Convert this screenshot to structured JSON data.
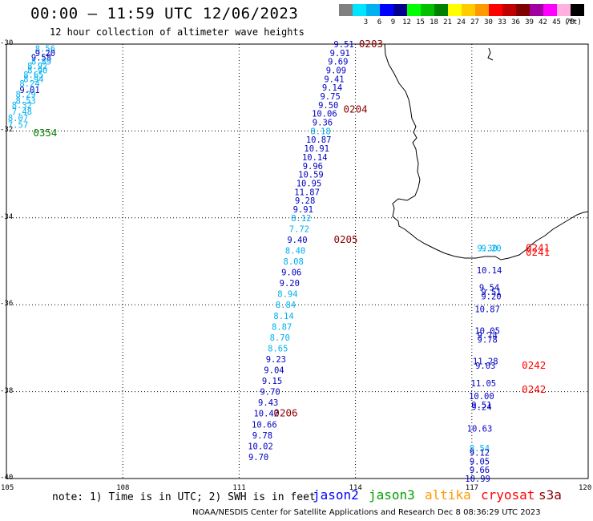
{
  "title": "00:00 – 11:59 UTC 12/06/2023",
  "subtitle": "12 hour collection of altimeter wave heights",
  "legend": {
    "unit": "(ft)",
    "bins": [
      {
        "color": "#808080",
        "label": ""
      },
      {
        "color": "#00e5ff",
        "label": "3"
      },
      {
        "color": "#00b0f0",
        "label": "6"
      },
      {
        "color": "#0000ff",
        "label": "9"
      },
      {
        "color": "#000090",
        "label": "12"
      },
      {
        "color": "#00ff00",
        "label": "15"
      },
      {
        "color": "#00c000",
        "label": "18"
      },
      {
        "color": "#008000",
        "label": "21"
      },
      {
        "color": "#ffff00",
        "label": "24"
      },
      {
        "color": "#ffcc00",
        "label": "27"
      },
      {
        "color": "#ff9900",
        "label": "30"
      },
      {
        "color": "#ff0000",
        "label": "33"
      },
      {
        "color": "#c00000",
        "label": "36"
      },
      {
        "color": "#800000",
        "label": "39"
      },
      {
        "color": "#a000a0",
        "label": "42"
      },
      {
        "color": "#ff00ff",
        "label": "45"
      },
      {
        "color": "#ffb0e0",
        "label": "70"
      },
      {
        "color": "#000000",
        "label": ""
      }
    ]
  },
  "axes": {
    "lon_labels": [
      "105",
      "108",
      "111",
      "114",
      "117",
      "120"
    ],
    "lat_labels": [
      "-30",
      "-32",
      "-34",
      "-36",
      "-38",
      "-40"
    ]
  },
  "tracks": [
    {
      "name": "track-west",
      "color": "#00b0f0",
      "points": [
        {
          "lon": 106.0,
          "lat": -30.1,
          "v": "8.56",
          "c": "#00b0f0"
        },
        {
          "lon": 106.0,
          "lat": -30.2,
          "v": "9.20",
          "c": "#0000c0"
        },
        {
          "lon": 105.9,
          "lat": -30.3,
          "v": "9.58",
          "c": "#0000c0"
        },
        {
          "lon": 105.9,
          "lat": -30.4,
          "v": "8.89",
          "c": "#00b0f0"
        },
        {
          "lon": 105.8,
          "lat": -30.5,
          "v": "8.92",
          "c": "#00b0f0"
        },
        {
          "lon": 105.8,
          "lat": -30.6,
          "v": "8.90",
          "c": "#00b0f0"
        },
        {
          "lon": 105.7,
          "lat": -30.7,
          "v": "8.65",
          "c": "#00b0f0"
        },
        {
          "lon": 105.7,
          "lat": -30.8,
          "v": "8.94",
          "c": "#00b0f0"
        },
        {
          "lon": 105.6,
          "lat": -30.9,
          "v": "8.24",
          "c": "#00b0f0"
        },
        {
          "lon": 105.6,
          "lat": -31.05,
          "v": "9.01",
          "c": "#0000c0"
        },
        {
          "lon": 105.5,
          "lat": -31.15,
          "v": "8.29",
          "c": "#00b0f0"
        },
        {
          "lon": 105.5,
          "lat": -31.3,
          "v": "8.53",
          "c": "#00b0f0"
        },
        {
          "lon": 105.4,
          "lat": -31.4,
          "v": "8.32",
          "c": "#00b0f0"
        },
        {
          "lon": 105.4,
          "lat": -31.55,
          "v": "7.48",
          "c": "#00b0f0"
        },
        {
          "lon": 105.3,
          "lat": -31.7,
          "v": "8.07",
          "c": "#00b0f0"
        },
        {
          "lon": 105.3,
          "lat": -31.85,
          "v": "7.57",
          "c": "#00b0f0"
        }
      ]
    },
    {
      "name": "track-middle",
      "color": "#00b0f0",
      "points": [
        {
          "lon": 113.7,
          "lat": -30.0,
          "v": "9.51",
          "c": "#0000c0"
        },
        {
          "lon": 113.6,
          "lat": -30.2,
          "v": "9.91",
          "c": "#0000c0"
        },
        {
          "lon": 113.55,
          "lat": -30.4,
          "v": "9.69",
          "c": "#0000c0"
        },
        {
          "lon": 113.5,
          "lat": -30.6,
          "v": "9.09",
          "c": "#0000c0"
        },
        {
          "lon": 113.45,
          "lat": -30.8,
          "v": "9.41",
          "c": "#0000c0"
        },
        {
          "lon": 113.4,
          "lat": -31.0,
          "v": "9.14",
          "c": "#0000c0"
        },
        {
          "lon": 113.35,
          "lat": -31.2,
          "v": "9.75",
          "c": "#0000c0"
        },
        {
          "lon": 113.3,
          "lat": -31.4,
          "v": "9.50",
          "c": "#0000c0"
        },
        {
          "lon": 113.2,
          "lat": -31.6,
          "v": "10.06",
          "c": "#0000c0"
        },
        {
          "lon": 113.15,
          "lat": -31.8,
          "v": "9.36",
          "c": "#0000c0"
        },
        {
          "lon": 113.1,
          "lat": -32.0,
          "v": "8.18",
          "c": "#00b0f0"
        },
        {
          "lon": 113.05,
          "lat": -32.2,
          "v": "10.87",
          "c": "#0000c0"
        },
        {
          "lon": 113.0,
          "lat": -32.4,
          "v": "10.91",
          "c": "#0000c0"
        },
        {
          "lon": 112.95,
          "lat": -32.6,
          "v": "10.14",
          "c": "#0000c0"
        },
        {
          "lon": 112.9,
          "lat": -32.8,
          "v": "9.96",
          "c": "#0000c0"
        },
        {
          "lon": 112.85,
          "lat": -33.0,
          "v": "10.59",
          "c": "#0000c0"
        },
        {
          "lon": 112.8,
          "lat": -33.2,
          "v": "10.95",
          "c": "#0000c0"
        },
        {
          "lon": 112.75,
          "lat": -33.4,
          "v": "11.87",
          "c": "#0000c0"
        },
        {
          "lon": 112.7,
          "lat": -33.6,
          "v": "9.28",
          "c": "#0000c0"
        },
        {
          "lon": 112.65,
          "lat": -33.8,
          "v": "9.91",
          "c": "#0000c0"
        },
        {
          "lon": 112.6,
          "lat": -34.0,
          "v": "8.12",
          "c": "#00b0f0"
        },
        {
          "lon": 112.55,
          "lat": -34.25,
          "v": "7.72",
          "c": "#00b0f0"
        },
        {
          "lon": 112.5,
          "lat": -34.5,
          "v": "9.40",
          "c": "#0000c0"
        },
        {
          "lon": 112.45,
          "lat": -34.75,
          "v": "8.40",
          "c": "#00b0f0"
        },
        {
          "lon": 112.4,
          "lat": -35.0,
          "v": "8.08",
          "c": "#00b0f0"
        },
        {
          "lon": 112.35,
          "lat": -35.25,
          "v": "9.06",
          "c": "#0000c0"
        },
        {
          "lon": 112.3,
          "lat": -35.5,
          "v": "9.20",
          "c": "#0000c0"
        },
        {
          "lon": 112.25,
          "lat": -35.75,
          "v": "8.94",
          "c": "#00b0f0"
        },
        {
          "lon": 112.2,
          "lat": -36.0,
          "v": "8.84",
          "c": "#00b0f0"
        },
        {
          "lon": 112.15,
          "lat": -36.25,
          "v": "8.14",
          "c": "#00b0f0"
        },
        {
          "lon": 112.1,
          "lat": -36.5,
          "v": "8.87",
          "c": "#00b0f0"
        },
        {
          "lon": 112.05,
          "lat": -36.75,
          "v": "8.70",
          "c": "#00b0f0"
        },
        {
          "lon": 112.0,
          "lat": -37.0,
          "v": "8.65",
          "c": "#00b0f0"
        },
        {
          "lon": 111.95,
          "lat": -37.25,
          "v": "9.23",
          "c": "#0000c0"
        },
        {
          "lon": 111.9,
          "lat": -37.5,
          "v": "9.04",
          "c": "#0000c0"
        },
        {
          "lon": 111.85,
          "lat": -37.75,
          "v": "9.15",
          "c": "#0000c0"
        },
        {
          "lon": 111.8,
          "lat": -38.0,
          "v": "9.70",
          "c": "#0000c0"
        },
        {
          "lon": 111.75,
          "lat": -38.25,
          "v": "9.43",
          "c": "#0000c0"
        },
        {
          "lon": 111.7,
          "lat": -38.5,
          "v": "10.42",
          "c": "#0000c0"
        },
        {
          "lon": 111.65,
          "lat": -38.75,
          "v": "10.66",
          "c": "#0000c0"
        },
        {
          "lon": 111.6,
          "lat": -39.0,
          "v": "9.78",
          "c": "#0000c0"
        },
        {
          "lon": 111.55,
          "lat": -39.25,
          "v": "10.02",
          "c": "#0000c0"
        },
        {
          "lon": 111.5,
          "lat": -39.5,
          "v": "9.70",
          "c": "#0000c0"
        }
      ]
    },
    {
      "name": "track-east",
      "color": "#00b0f0",
      "points": [
        {
          "lon": 117.4,
          "lat": -34.7,
          "v": "9.30",
          "c": "#00b0f0"
        },
        {
          "lon": 117.5,
          "lat": -34.7,
          "v": "9.20",
          "c": "#00b0f0"
        },
        {
          "lon": 117.45,
          "lat": -35.2,
          "v": "10.14",
          "c": "#0000c0"
        },
        {
          "lon": 117.45,
          "lat": -35.6,
          "v": "9.54",
          "c": "#0000c0"
        },
        {
          "lon": 117.5,
          "lat": -35.7,
          "v": "9.51",
          "c": "#0000c0"
        },
        {
          "lon": 117.5,
          "lat": -35.8,
          "v": "9.20",
          "c": "#0000c0"
        },
        {
          "lon": 117.4,
          "lat": -36.1,
          "v": "10.87",
          "c": "#0000c0"
        },
        {
          "lon": 117.4,
          "lat": -36.6,
          "v": "10.05",
          "c": "#0000c0"
        },
        {
          "lon": 117.4,
          "lat": -36.7,
          "v": "9.74",
          "c": "#0000c0"
        },
        {
          "lon": 117.4,
          "lat": -36.8,
          "v": "9.78",
          "c": "#0000c0"
        },
        {
          "lon": 117.35,
          "lat": -37.3,
          "v": "11.28",
          "c": "#0000c0"
        },
        {
          "lon": 117.35,
          "lat": -37.4,
          "v": "9.03",
          "c": "#0000c0"
        },
        {
          "lon": 117.3,
          "lat": -37.8,
          "v": "11.05",
          "c": "#0000c0"
        },
        {
          "lon": 117.25,
          "lat": -38.1,
          "v": "10.00",
          "c": "#0000c0"
        },
        {
          "lon": 117.25,
          "lat": -38.3,
          "v": "9.51",
          "c": "#0000c0"
        },
        {
          "lon": 117.25,
          "lat": -38.35,
          "v": "9.24",
          "c": "#0000c0"
        },
        {
          "lon": 117.2,
          "lat": -38.85,
          "v": "10.63",
          "c": "#0000c0"
        },
        {
          "lon": 117.2,
          "lat": -39.3,
          "v": "8.54",
          "c": "#00b0f0"
        },
        {
          "lon": 117.2,
          "lat": -39.4,
          "v": "9.12",
          "c": "#0000c0"
        },
        {
          "lon": 117.2,
          "lat": -39.6,
          "v": "9.05",
          "c": "#0000c0"
        },
        {
          "lon": 117.2,
          "lat": -39.8,
          "v": "9.66",
          "c": "#0000c0"
        },
        {
          "lon": 117.15,
          "lat": -40.0,
          "v": "10.99",
          "c": "#0000c0"
        }
      ]
    }
  ],
  "pass_times": [
    {
      "lon": 114.4,
      "lat": -30.0,
      "text": "0203",
      "color": "#8b0000"
    },
    {
      "lon": 114.0,
      "lat": -31.5,
      "text": "0204",
      "color": "#8b0000"
    },
    {
      "lon": 113.75,
      "lat": -34.5,
      "text": "0205",
      "color": "#8b0000"
    },
    {
      "lon": 112.2,
      "lat": -38.5,
      "text": "0206",
      "color": "#8b0000"
    },
    {
      "lon": 106.0,
      "lat": -32.05,
      "text": "0354",
      "color": "#008000"
    },
    {
      "lon": 118.7,
      "lat": -34.7,
      "text": "0241",
      "color": "#ff0000"
    },
    {
      "lon": 118.7,
      "lat": -34.8,
      "text": "0241",
      "color": "#ff0000"
    },
    {
      "lon": 118.6,
      "lat": -37.4,
      "text": "0242",
      "color": "#ff0000"
    },
    {
      "lon": 118.6,
      "lat": -37.95,
      "text": "0242",
      "color": "#ff0000"
    }
  ],
  "note": "note: 1) Time is in UTC; 2) SWH is in feet",
  "satellites": [
    {
      "name": "jason2",
      "color": "#0000ff"
    },
    {
      "name": "jason3",
      "color": "#00a000"
    },
    {
      "name": "altika",
      "color": "#ff9900"
    },
    {
      "name": "cryosat",
      "color": "#ff0000"
    },
    {
      "name": "s3a",
      "color": "#8b0000"
    }
  ],
  "credit": "NOAA/NESDIS Center for Satellite Applications and Research    Dec  8 08:36:29 UTC 2023"
}
